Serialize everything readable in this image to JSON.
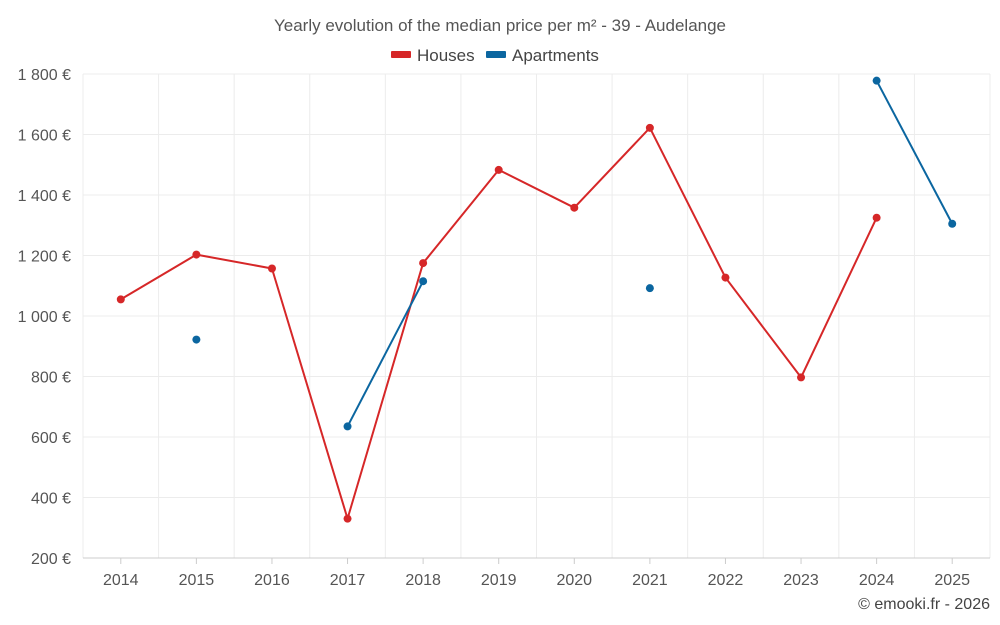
{
  "chart_data": {
    "type": "line",
    "title": "Yearly evolution of the median price per m² - 39 - Audelange",
    "categories": [
      "2014",
      "2015",
      "2016",
      "2017",
      "2018",
      "2019",
      "2020",
      "2021",
      "2022",
      "2023",
      "2024",
      "2025"
    ],
    "series": [
      {
        "name": "Houses",
        "color": "#d62728",
        "values": [
          1055,
          1203,
          1157,
          330,
          1175,
          1483,
          1358,
          1622,
          1127,
          797,
          1325,
          null
        ]
      },
      {
        "name": "Apartments",
        "color": "#0b66a0",
        "values": [
          null,
          922,
          null,
          635,
          1115,
          null,
          null,
          1092,
          null,
          null,
          1778,
          1305
        ]
      }
    ],
    "ylim": [
      200,
      1800
    ],
    "yticks": [
      200,
      400,
      600,
      800,
      1000,
      1200,
      1400,
      1600,
      1800
    ],
    "ytick_labels": [
      "200 €",
      "400 €",
      "600 €",
      "800 €",
      "1 000 €",
      "1 200 €",
      "1 400 €",
      "1 600 €",
      "1 800 €"
    ],
    "legend_position": "top-center",
    "grid": true,
    "xlabel": "",
    "ylabel": ""
  },
  "credit": "© emooki.fr - 2026"
}
